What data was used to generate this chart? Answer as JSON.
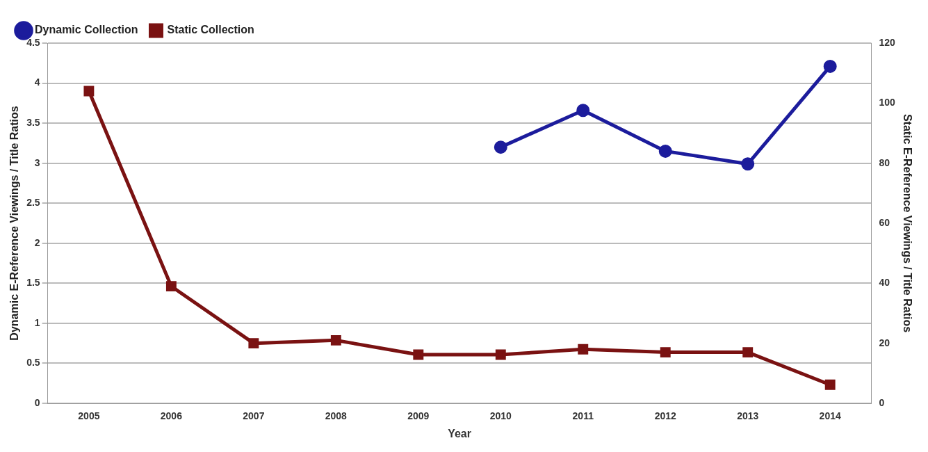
{
  "chart_data": {
    "type": "line",
    "xlabel": "Year",
    "ylabel": "Dynamic E-Reference Viewings / Title Ratios",
    "y2label": "Static E-Reference Viewings / Title Ratios",
    "categories": [
      "2005",
      "2006",
      "2007",
      "2008",
      "2009",
      "2010",
      "2011",
      "2012",
      "2013",
      "2014"
    ],
    "series": [
      {
        "name": "Dynamic Collection",
        "color": "#1c1c9c",
        "marker": "circle",
        "values": [
          null,
          null,
          null,
          null,
          null,
          3.2,
          3.66,
          3.15,
          2.99,
          4.21
        ]
      },
      {
        "name": "Static Collection",
        "color": "#7a1212",
        "marker": "square",
        "axis": "y2",
        "values": [
          104,
          39,
          20,
          21,
          16.2,
          16.2,
          18,
          17,
          17,
          6.2
        ]
      }
    ],
    "ylim": [
      0,
      4.5
    ],
    "yticks": [
      0,
      0.5,
      1,
      1.5,
      2,
      2.5,
      3,
      3.5,
      4,
      4.5
    ],
    "y2lim": [
      0,
      120
    ],
    "y2ticks": [
      0,
      20,
      40,
      60,
      80,
      100,
      120
    ],
    "grid": "y",
    "legend": "top left"
  }
}
